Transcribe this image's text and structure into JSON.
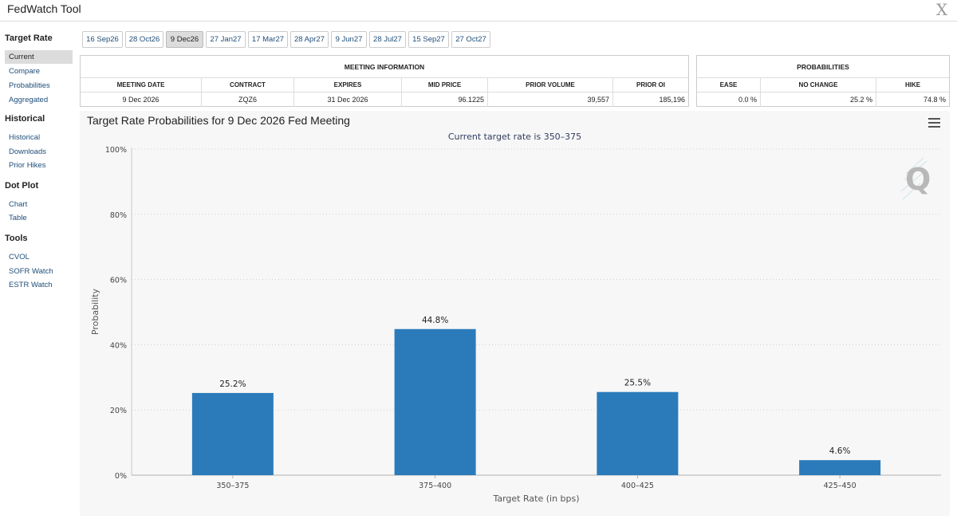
{
  "app": {
    "title": "FedWatch Tool"
  },
  "sidebar": {
    "sections": [
      {
        "title": "Target Rate",
        "items": [
          {
            "label": "Current",
            "active": true
          },
          {
            "label": "Compare"
          },
          {
            "label": "Probabilities"
          },
          {
            "label": "Aggregated"
          }
        ]
      },
      {
        "title": "Historical",
        "items": [
          {
            "label": "Historical"
          },
          {
            "label": "Downloads"
          },
          {
            "label": "Prior Hikes"
          }
        ]
      },
      {
        "title": "Dot Plot",
        "items": [
          {
            "label": "Chart"
          },
          {
            "label": "Table"
          }
        ]
      },
      {
        "title": "Tools",
        "items": [
          {
            "label": "CVOL"
          },
          {
            "label": "SOFR Watch"
          },
          {
            "label": "ESTR Watch"
          }
        ]
      }
    ]
  },
  "date_tabs": [
    "16 Sep26",
    "28 Oct26",
    "9 Dec26",
    "27 Jan27",
    "17 Mar27",
    "28 Apr27",
    "9 Jun27",
    "28 Jul27",
    "15 Sep27",
    "27 Oct27"
  ],
  "active_date_tab": "9 Dec26",
  "meeting_info": {
    "title": "MEETING INFORMATION",
    "headers": [
      "MEETING DATE",
      "CONTRACT",
      "EXPIRES",
      "MID PRICE",
      "PRIOR VOLUME",
      "PRIOR OI"
    ],
    "row": [
      "9 Dec 2026",
      "ZQZ6",
      "31 Dec 2026",
      "96.1225",
      "39,557",
      "185,196"
    ]
  },
  "probabilities": {
    "title": "PROBABILITIES",
    "headers": [
      "EASE",
      "NO CHANGE",
      "HIKE"
    ],
    "row": [
      "0.0 %",
      "25.2 %",
      "74.8 %"
    ]
  },
  "chart": {
    "title": "Target Rate Probabilities for 9 Dec 2026 Fed Meeting",
    "subtitle": "Current target rate is 350–375"
  },
  "chart_data": {
    "type": "bar",
    "title": "Target Rate Probabilities for 9 Dec 2026 Fed Meeting",
    "subtitle": "Current target rate is 350–375",
    "categories": [
      "350–375",
      "375–400",
      "400–425",
      "425–450"
    ],
    "values": [
      25.2,
      44.8,
      25.5,
      4.6
    ],
    "data_labels": [
      "25.2%",
      "44.8%",
      "25.5%",
      "4.6%"
    ],
    "xlabel": "Target Rate (in bps)",
    "ylabel": "Probability",
    "ylim": [
      0,
      100
    ],
    "yticks": [
      "0%",
      "20%",
      "40%",
      "60%",
      "80%",
      "100%"
    ],
    "grid": true,
    "bar_color": "#2b7bba"
  }
}
